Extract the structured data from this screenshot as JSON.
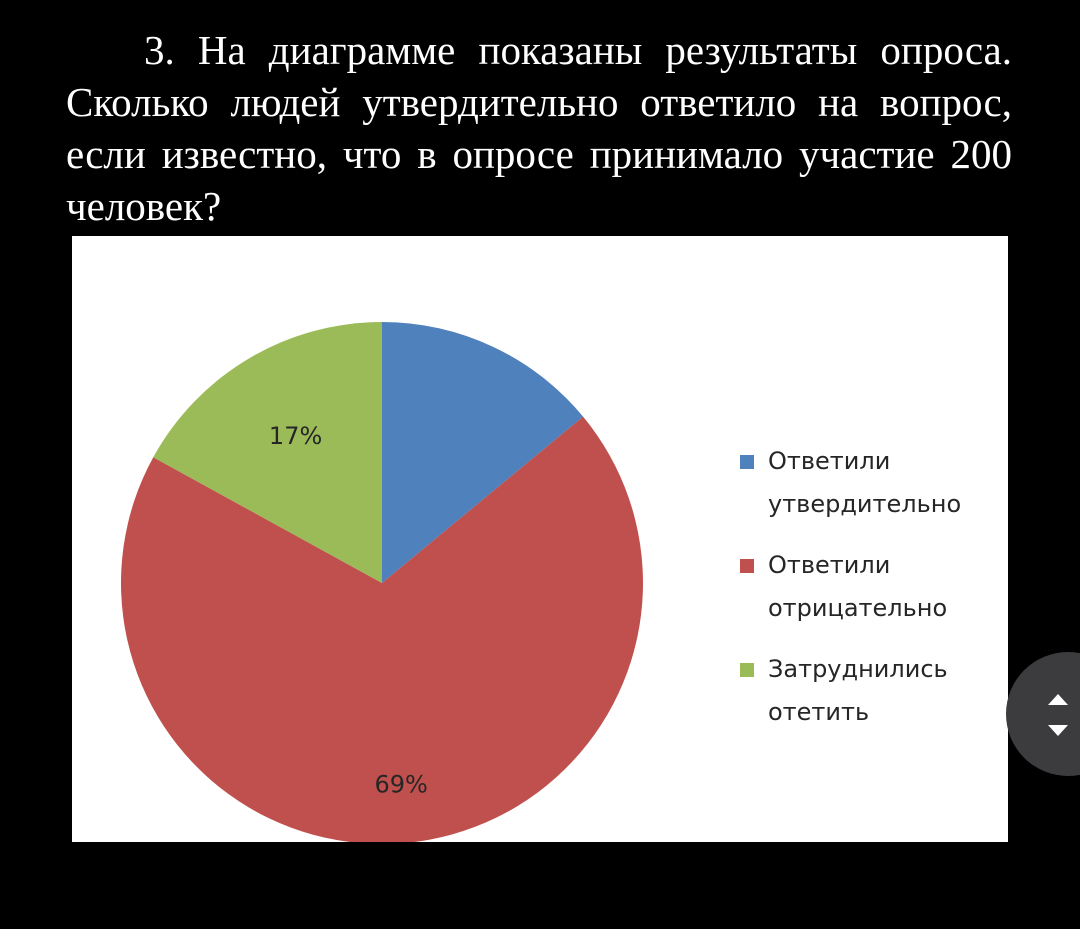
{
  "question": {
    "text": "3. На диаграмме показаны результаты опроса. Сколько людей утвердительно ответило на вопрос, если известно, что в опросе принимало участие 200 человек?"
  },
  "colors": {
    "background": "#000000",
    "panel": "#ffffff",
    "affirmative": "#4f81bd",
    "negative": "#c0504d",
    "undecided": "#9bbb59"
  },
  "chart_data": {
    "type": "pie",
    "title": "",
    "start_angle_deg": 0,
    "direction": "clockwise",
    "slices": [
      {
        "name": "Ответили утвердительно",
        "value": 14,
        "label": "",
        "color": "#4f81bd"
      },
      {
        "name": "Ответили отрицательно",
        "value": 69,
        "label": "69%",
        "color": "#c0504d"
      },
      {
        "name": "Затруднились отетить",
        "value": 17,
        "label": "17%",
        "color": "#9bbb59"
      }
    ],
    "legend_position": "right"
  },
  "scroll_widget": {
    "up_icon": "chevron-up-icon",
    "down_icon": "chevron-down-icon"
  }
}
